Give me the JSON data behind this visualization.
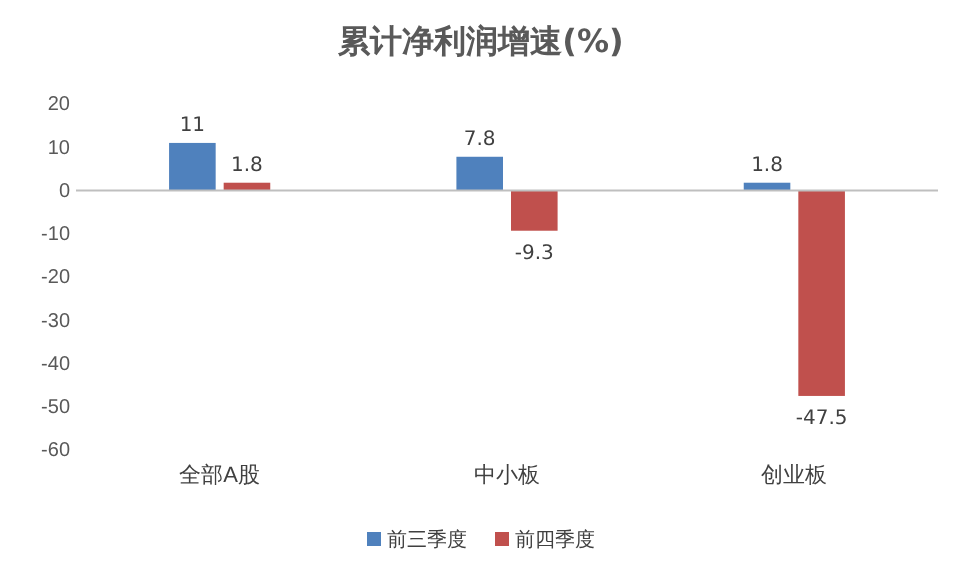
{
  "chart_data": {
    "type": "bar",
    "title": "累计净利润增速(%)",
    "categories": [
      "全部A股",
      "中小板",
      "创业板"
    ],
    "series": [
      {
        "name": "前三季度",
        "color": "#4f81bd",
        "values": [
          11,
          7.8,
          1.8
        ]
      },
      {
        "name": "前四季度",
        "color": "#c0504d",
        "values": [
          1.8,
          -9.3,
          -47.5
        ]
      }
    ],
    "ylim": [
      -60,
      20
    ],
    "yticks": [
      -60,
      -50,
      -40,
      -30,
      -20,
      -10,
      0,
      10,
      20
    ],
    "data_labels": true,
    "legend": "bottom"
  }
}
